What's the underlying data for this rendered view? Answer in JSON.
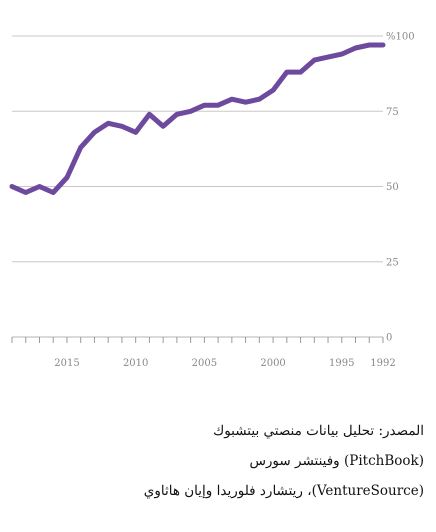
{
  "chart_data": {
    "type": "line",
    "title": "",
    "xlabel": "",
    "ylabel": "",
    "x_direction": "right-to-left",
    "xlim": [
      1992,
      2019
    ],
    "ylim": [
      0,
      100
    ],
    "y_ticks": [
      0,
      25,
      50,
      75,
      100
    ],
    "y_tick_labels": [
      "0",
      "25",
      "50",
      "75",
      "%100"
    ],
    "x_ticks": [
      1992,
      1995,
      2000,
      2005,
      2010,
      2015
    ],
    "x_tick_labels": [
      "1992",
      "1995",
      "2000",
      "2005",
      "2010",
      "2015"
    ],
    "grid": true,
    "colors": {
      "series": "#6e4a9e",
      "grid": "#c8c8c8",
      "text": "#888888"
    },
    "series": [
      {
        "x": [
          1992,
          1993,
          1994,
          1995,
          1996,
          1997,
          1998,
          1999,
          2000,
          2001,
          2002,
          2003,
          2004,
          2005,
          2006,
          2007,
          2008,
          2009,
          2010,
          2011,
          2012,
          2013,
          2014,
          2015,
          2016,
          2017,
          2018,
          2019
        ],
        "values": [
          97,
          97,
          96,
          94,
          93,
          92,
          88,
          88,
          82,
          79,
          78,
          79,
          77,
          77,
          75,
          74,
          70,
          74,
          68,
          70,
          71,
          68,
          63,
          53,
          48,
          50,
          48,
          50
        ]
      }
    ]
  },
  "source": {
    "line1": "المصدر: تحليل بيانات منصتي بيتشبوك",
    "line2": "(PitchBook) وفينتشر سورس",
    "line3": "(VentureSource)، ريتشارد فلوريدا وإيان هاثاوي"
  }
}
